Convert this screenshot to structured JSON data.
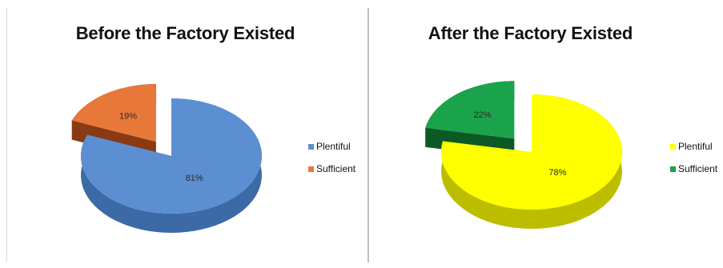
{
  "chart_data": [
    {
      "type": "pie",
      "title": "Before the Factory Existed",
      "categories": [
        "Plentiful",
        "Sufficient"
      ],
      "values": [
        81,
        19
      ],
      "data_labels": [
        "81%",
        "19%"
      ],
      "colors": [
        "#5b8fd1",
        "#e8783a"
      ],
      "side_colors": [
        "#3b6aa6",
        "#8a3a12"
      ],
      "exploded": "Sufficient",
      "legend_position": "right",
      "style": "3d"
    },
    {
      "type": "pie",
      "title": "After the Factory Existed",
      "categories": [
        "Plentiful",
        "Sufficient"
      ],
      "values": [
        78,
        22
      ],
      "data_labels": [
        "78%",
        "22%"
      ],
      "colors": [
        "#ffff00",
        "#1aa34a"
      ],
      "side_colors": [
        "#bdbd00",
        "#0b5a26"
      ],
      "exploded": "Sufficient",
      "legend_position": "right",
      "style": "3d"
    }
  ]
}
